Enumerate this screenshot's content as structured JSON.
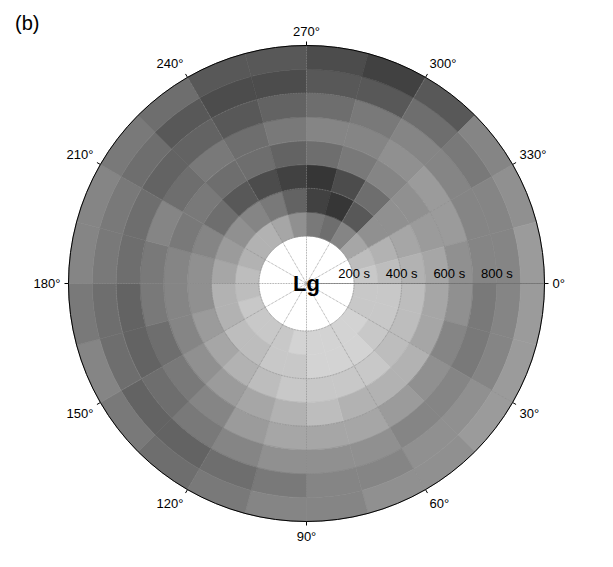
{
  "chart_data": {
    "type": "polar_heatmap",
    "title": "(b)",
    "center_label": "Lg",
    "grid": true,
    "angle_lim": [
      0,
      360
    ],
    "angle_ticks": [
      {
        "value": 0,
        "label": "0°"
      },
      {
        "value": 30,
        "label": "30°"
      },
      {
        "value": 60,
        "label": "60°"
      },
      {
        "value": 90,
        "label": "90°"
      },
      {
        "value": 120,
        "label": "120°"
      },
      {
        "value": 150,
        "label": "150°"
      },
      {
        "value": 180,
        "label": "180°"
      },
      {
        "value": 210,
        "label": "210°"
      },
      {
        "value": 240,
        "label": "240°"
      },
      {
        "value": 270,
        "label": "270°"
      },
      {
        "value": 300,
        "label": "300°"
      },
      {
        "value": 330,
        "label": "330°"
      }
    ],
    "radius_lim": [
      0,
      1000
    ],
    "radius_ticks": [
      {
        "value": 200,
        "label": "200 s"
      },
      {
        "value": 400,
        "label": "400 s"
      },
      {
        "value": 600,
        "label": "600 s"
      },
      {
        "value": 800,
        "label": "800 s"
      }
    ],
    "value_range": [
      0,
      1
    ],
    "cells": {
      "angle_bins": [
        0,
        15,
        30,
        45,
        60,
        75,
        90,
        105,
        120,
        135,
        150,
        165,
        180,
        195,
        210,
        225,
        240,
        255,
        270,
        285,
        300,
        315,
        330,
        345,
        360
      ],
      "radius_bins": [
        200,
        300,
        400,
        500,
        600,
        700,
        800,
        900,
        1000
      ],
      "values": [
        [
          0.2,
          0.2,
          0.25,
          0.35,
          0.45,
          0.55,
          0.5,
          0.4
        ],
        [
          0.2,
          0.2,
          0.25,
          0.35,
          0.5,
          0.55,
          0.5,
          0.4
        ],
        [
          0.15,
          0.2,
          0.25,
          0.3,
          0.45,
          0.5,
          0.45,
          0.4
        ],
        [
          0.15,
          0.15,
          0.2,
          0.3,
          0.4,
          0.5,
          0.45,
          0.45
        ],
        [
          0.15,
          0.15,
          0.2,
          0.3,
          0.35,
          0.45,
          0.5,
          0.45
        ],
        [
          0.15,
          0.15,
          0.2,
          0.25,
          0.35,
          0.45,
          0.5,
          0.5
        ],
        [
          0.15,
          0.2,
          0.2,
          0.3,
          0.35,
          0.45,
          0.55,
          0.5
        ],
        [
          0.2,
          0.2,
          0.25,
          0.35,
          0.4,
          0.5,
          0.6,
          0.55
        ],
        [
          0.2,
          0.25,
          0.3,
          0.4,
          0.5,
          0.55,
          0.65,
          0.6
        ],
        [
          0.2,
          0.25,
          0.35,
          0.45,
          0.55,
          0.6,
          0.65,
          0.55
        ],
        [
          0.2,
          0.3,
          0.4,
          0.5,
          0.6,
          0.65,
          0.6,
          0.5
        ],
        [
          0.25,
          0.3,
          0.45,
          0.5,
          0.55,
          0.65,
          0.6,
          0.55
        ],
        [
          0.25,
          0.35,
          0.45,
          0.5,
          0.55,
          0.6,
          0.55,
          0.5
        ],
        [
          0.3,
          0.4,
          0.5,
          0.55,
          0.5,
          0.6,
          0.55,
          0.5
        ],
        [
          0.3,
          0.45,
          0.6,
          0.55,
          0.6,
          0.65,
          0.6,
          0.55
        ],
        [
          0.3,
          0.5,
          0.7,
          0.6,
          0.55,
          0.65,
          0.7,
          0.6
        ],
        [
          0.35,
          0.55,
          0.75,
          0.6,
          0.6,
          0.7,
          0.75,
          0.7
        ],
        [
          0.45,
          0.65,
          0.8,
          0.65,
          0.55,
          0.65,
          0.75,
          0.7
        ],
        [
          0.55,
          0.8,
          0.85,
          0.6,
          0.5,
          0.6,
          0.7,
          0.75
        ],
        [
          0.6,
          0.85,
          0.75,
          0.55,
          0.5,
          0.55,
          0.7,
          0.8
        ],
        [
          0.5,
          0.7,
          0.6,
          0.5,
          0.45,
          0.5,
          0.6,
          0.7
        ],
        [
          0.35,
          0.45,
          0.45,
          0.45,
          0.4,
          0.5,
          0.55,
          0.5
        ],
        [
          0.25,
          0.3,
          0.35,
          0.4,
          0.4,
          0.5,
          0.5,
          0.45
        ],
        [
          0.2,
          0.25,
          0.3,
          0.35,
          0.45,
          0.5,
          0.5,
          0.4
        ]
      ]
    }
  }
}
